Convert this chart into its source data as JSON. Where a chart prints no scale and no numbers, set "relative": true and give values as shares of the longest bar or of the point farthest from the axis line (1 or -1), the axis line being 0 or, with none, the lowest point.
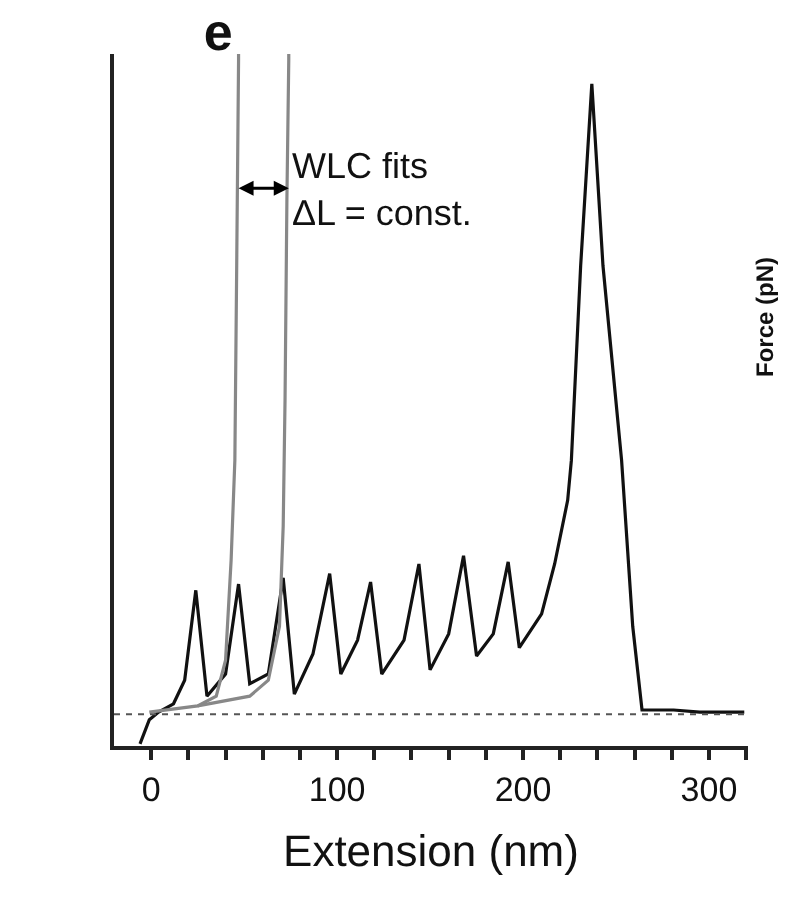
{
  "chart_data": {
    "type": "line",
    "title": "e",
    "xlabel": "Extension (nm)",
    "ylabel": "Force (pN)",
    "relative": true,
    "xlim": [
      -20,
      321
    ],
    "xticks": [
      0,
      {
        "value": 20,
        "label": null
      },
      {
        "value": 40,
        "label": null
      },
      {
        "value": 60,
        "label": null
      },
      {
        "value": 80,
        "label": null
      },
      100,
      {
        "value": 120,
        "label": null
      },
      {
        "value": 140,
        "label": null
      },
      {
        "value": 160,
        "label": null
      },
      {
        "value": 180,
        "label": null
      },
      200,
      {
        "value": 220,
        "label": null
      },
      {
        "value": 240,
        "label": null
      },
      {
        "value": 260,
        "label": null
      },
      {
        "value": 280,
        "label": null
      },
      300,
      {
        "value": 320,
        "label": null
      }
    ],
    "series": [
      {
        "color": "#111111",
        "x": [
          -6,
          -1,
          4,
          12,
          18,
          24,
          30,
          40,
          47,
          53,
          63,
          71,
          77,
          87,
          96,
          102,
          111,
          118,
          124,
          136,
          144,
          150,
          160,
          168,
          175,
          184,
          192,
          198,
          210,
          217,
          224,
          226,
          231,
          237,
          243,
          253,
          259,
          264,
          281,
          295,
          319
        ],
        "values": [
          0.003,
          0.038,
          0.049,
          0.061,
          0.095,
          0.225,
          0.072,
          0.104,
          0.234,
          0.09,
          0.104,
          0.243,
          0.075,
          0.133,
          0.249,
          0.104,
          0.153,
          0.237,
          0.104,
          0.153,
          0.263,
          0.11,
          0.162,
          0.275,
          0.13,
          0.162,
          0.266,
          0.142,
          0.191,
          0.263,
          0.355,
          0.413,
          0.694,
          0.957,
          0.694,
          0.413,
          0.173,
          0.052,
          0.052,
          0.049,
          0.049
        ]
      },
      {
        "color": "#888888",
        "x": [
          -1,
          25,
          35,
          40,
          43,
          45,
          46,
          47,
          47
        ],
        "values": [
          0.049,
          0.058,
          0.072,
          0.124,
          0.269,
          0.413,
          0.694,
          0.991,
          1.0
        ]
      },
      {
        "color": "#888888",
        "x": [
          25,
          53,
          63,
          69,
          71,
          72,
          73,
          74,
          74
        ],
        "values": [
          0.058,
          0.072,
          0.095,
          0.173,
          0.318,
          0.5,
          0.789,
          0.991,
          1.0
        ]
      }
    ],
    "ref_lines": [
      {
        "axis": "y",
        "value": 0.046,
        "color": "#555555",
        "line_style": "dotted"
      }
    ],
    "annotations": [
      "WLC fits\nΔL = const."
    ],
    "marker": "none",
    "line_style": "solid"
  }
}
